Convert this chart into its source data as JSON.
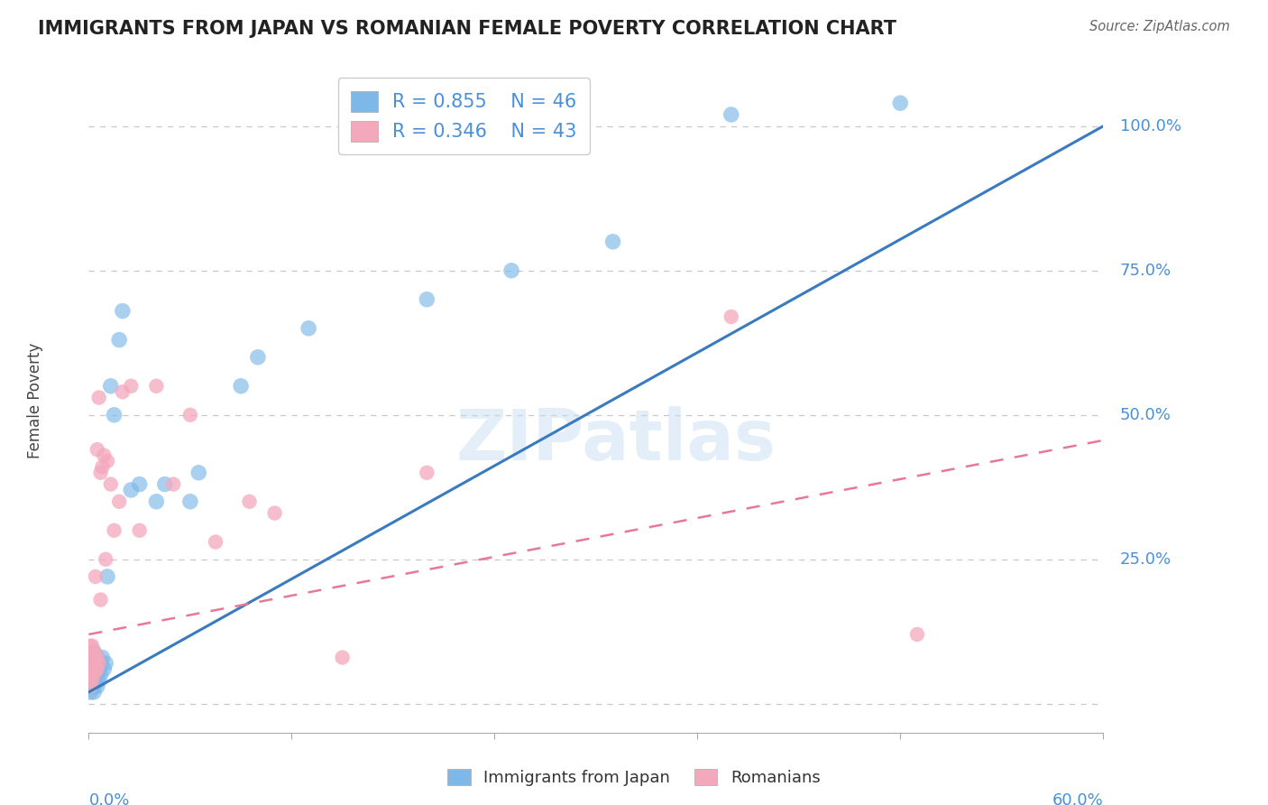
{
  "title": "IMMIGRANTS FROM JAPAN VS ROMANIAN FEMALE POVERTY CORRELATION CHART",
  "source": "Source: ZipAtlas.com",
  "ylabel": "Female Poverty",
  "xmin": 0.0,
  "xmax": 0.6,
  "ymin": -0.05,
  "ymax": 1.1,
  "yticks": [
    0.0,
    0.25,
    0.5,
    0.75,
    1.0
  ],
  "ytick_labels": [
    "",
    "25.0%",
    "50.0%",
    "75.0%",
    "100.0%"
  ],
  "xtick_positions": [
    0.0,
    0.12,
    0.24,
    0.36,
    0.48,
    0.6
  ],
  "grid_color": "#c8c8c8",
  "blue_color": "#7db8e8",
  "pink_color": "#f4a8bc",
  "blue_line_color": "#3a7abf",
  "pink_line_color": "#e87898",
  "label_color": "#4a90d9",
  "legend_R1": "R = 0.855",
  "legend_N1": "N = 46",
  "legend_R2": "R = 0.346",
  "legend_N2": "N = 43",
  "legend_label1": "Immigrants from Japan",
  "legend_label2": "Romanians",
  "watermark": "ZIPatlas",
  "japan_x": [
    0.001,
    0.001,
    0.001,
    0.001,
    0.001,
    0.002,
    0.002,
    0.002,
    0.002,
    0.003,
    0.003,
    0.003,
    0.003,
    0.003,
    0.004,
    0.004,
    0.004,
    0.005,
    0.005,
    0.005,
    0.006,
    0.006,
    0.007,
    0.007,
    0.008,
    0.009,
    0.01,
    0.011,
    0.013,
    0.015,
    0.018,
    0.02,
    0.025,
    0.03,
    0.04,
    0.045,
    0.06,
    0.065,
    0.09,
    0.1,
    0.13,
    0.2,
    0.25,
    0.31,
    0.38,
    0.48
  ],
  "japan_y": [
    0.02,
    0.03,
    0.04,
    0.05,
    0.07,
    0.03,
    0.04,
    0.06,
    0.08,
    0.02,
    0.03,
    0.05,
    0.07,
    0.09,
    0.04,
    0.06,
    0.08,
    0.03,
    0.05,
    0.08,
    0.04,
    0.06,
    0.05,
    0.07,
    0.08,
    0.06,
    0.07,
    0.22,
    0.55,
    0.5,
    0.63,
    0.68,
    0.37,
    0.38,
    0.35,
    0.38,
    0.35,
    0.4,
    0.55,
    0.6,
    0.65,
    0.7,
    0.75,
    0.8,
    1.02,
    1.04
  ],
  "romanian_x": [
    0.001,
    0.001,
    0.001,
    0.001,
    0.001,
    0.001,
    0.002,
    0.002,
    0.002,
    0.002,
    0.003,
    0.003,
    0.003,
    0.004,
    0.004,
    0.004,
    0.005,
    0.005,
    0.005,
    0.006,
    0.006,
    0.007,
    0.007,
    0.008,
    0.009,
    0.01,
    0.011,
    0.013,
    0.015,
    0.018,
    0.02,
    0.025,
    0.03,
    0.04,
    0.05,
    0.06,
    0.075,
    0.095,
    0.11,
    0.15,
    0.2,
    0.38,
    0.49
  ],
  "romanian_y": [
    0.03,
    0.04,
    0.05,
    0.06,
    0.08,
    0.1,
    0.04,
    0.06,
    0.08,
    0.1,
    0.05,
    0.07,
    0.09,
    0.06,
    0.08,
    0.22,
    0.06,
    0.08,
    0.44,
    0.07,
    0.53,
    0.18,
    0.4,
    0.41,
    0.43,
    0.25,
    0.42,
    0.38,
    0.3,
    0.35,
    0.54,
    0.55,
    0.3,
    0.55,
    0.38,
    0.5,
    0.28,
    0.35,
    0.33,
    0.08,
    0.4,
    0.67,
    0.12
  ]
}
